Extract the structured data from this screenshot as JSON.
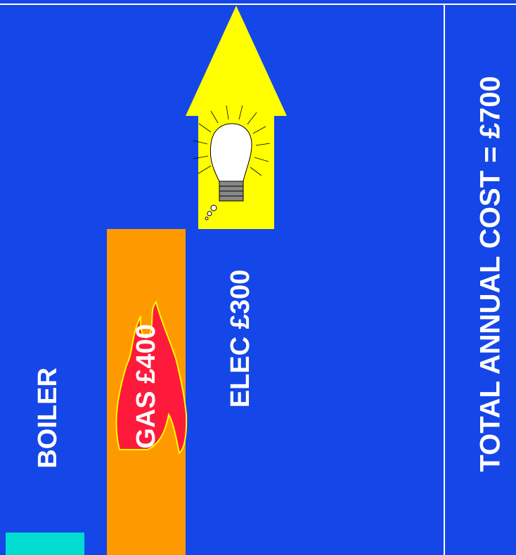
{
  "labels": {
    "boiler": "BOILER",
    "gas": "GAS £400",
    "elec": "ELEC £300",
    "total": "TOTAL ANNUAL COST = £700"
  }
}
